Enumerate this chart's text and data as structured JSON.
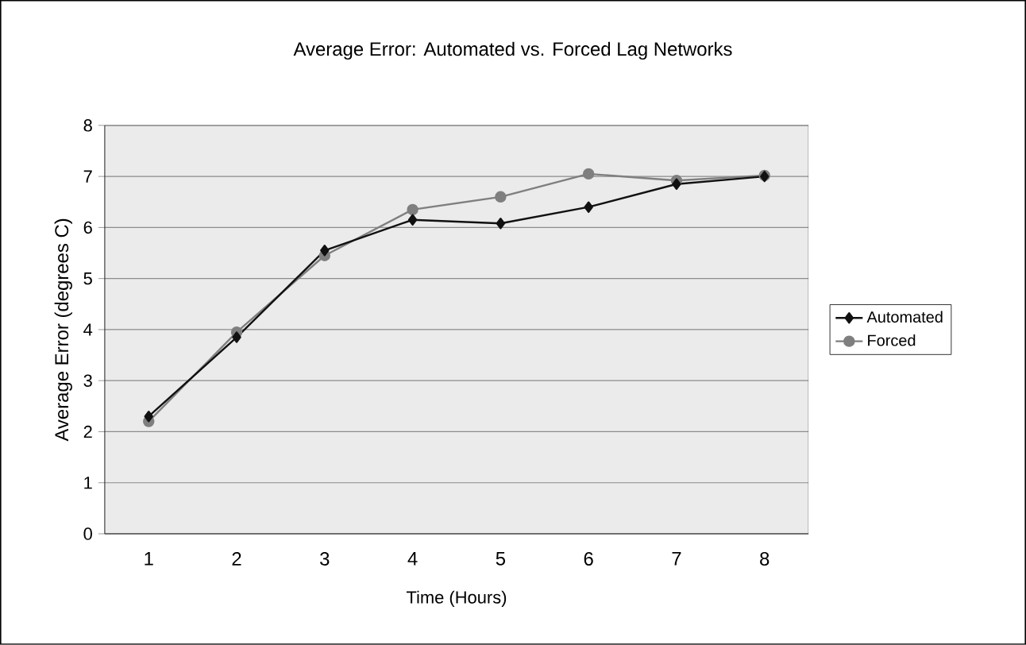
{
  "chart_data": {
    "type": "line",
    "title": "Average Error: Automated vs. Forced Lag Networks",
    "xlabel": "Time (Hours)",
    "ylabel": "Average Error (degrees C)",
    "categories": [
      "1",
      "2",
      "3",
      "4",
      "5",
      "6",
      "7",
      "8"
    ],
    "series": [
      {
        "name": "Automated",
        "color": "#111111",
        "marker": "diamond",
        "values": [
          2.3,
          3.85,
          5.55,
          6.15,
          6.08,
          6.4,
          6.85,
          7.0
        ]
      },
      {
        "name": "Forced",
        "color": "#7f7f7f",
        "marker": "circle",
        "values": [
          2.2,
          3.95,
          5.45,
          6.35,
          6.6,
          7.05,
          6.92,
          7.02
        ]
      }
    ],
    "ylim": [
      0,
      8
    ],
    "yticks": [
      0,
      1,
      2,
      3,
      4,
      5,
      6,
      7,
      8
    ],
    "grid": "y",
    "legend": "right",
    "line_style": "solid"
  }
}
